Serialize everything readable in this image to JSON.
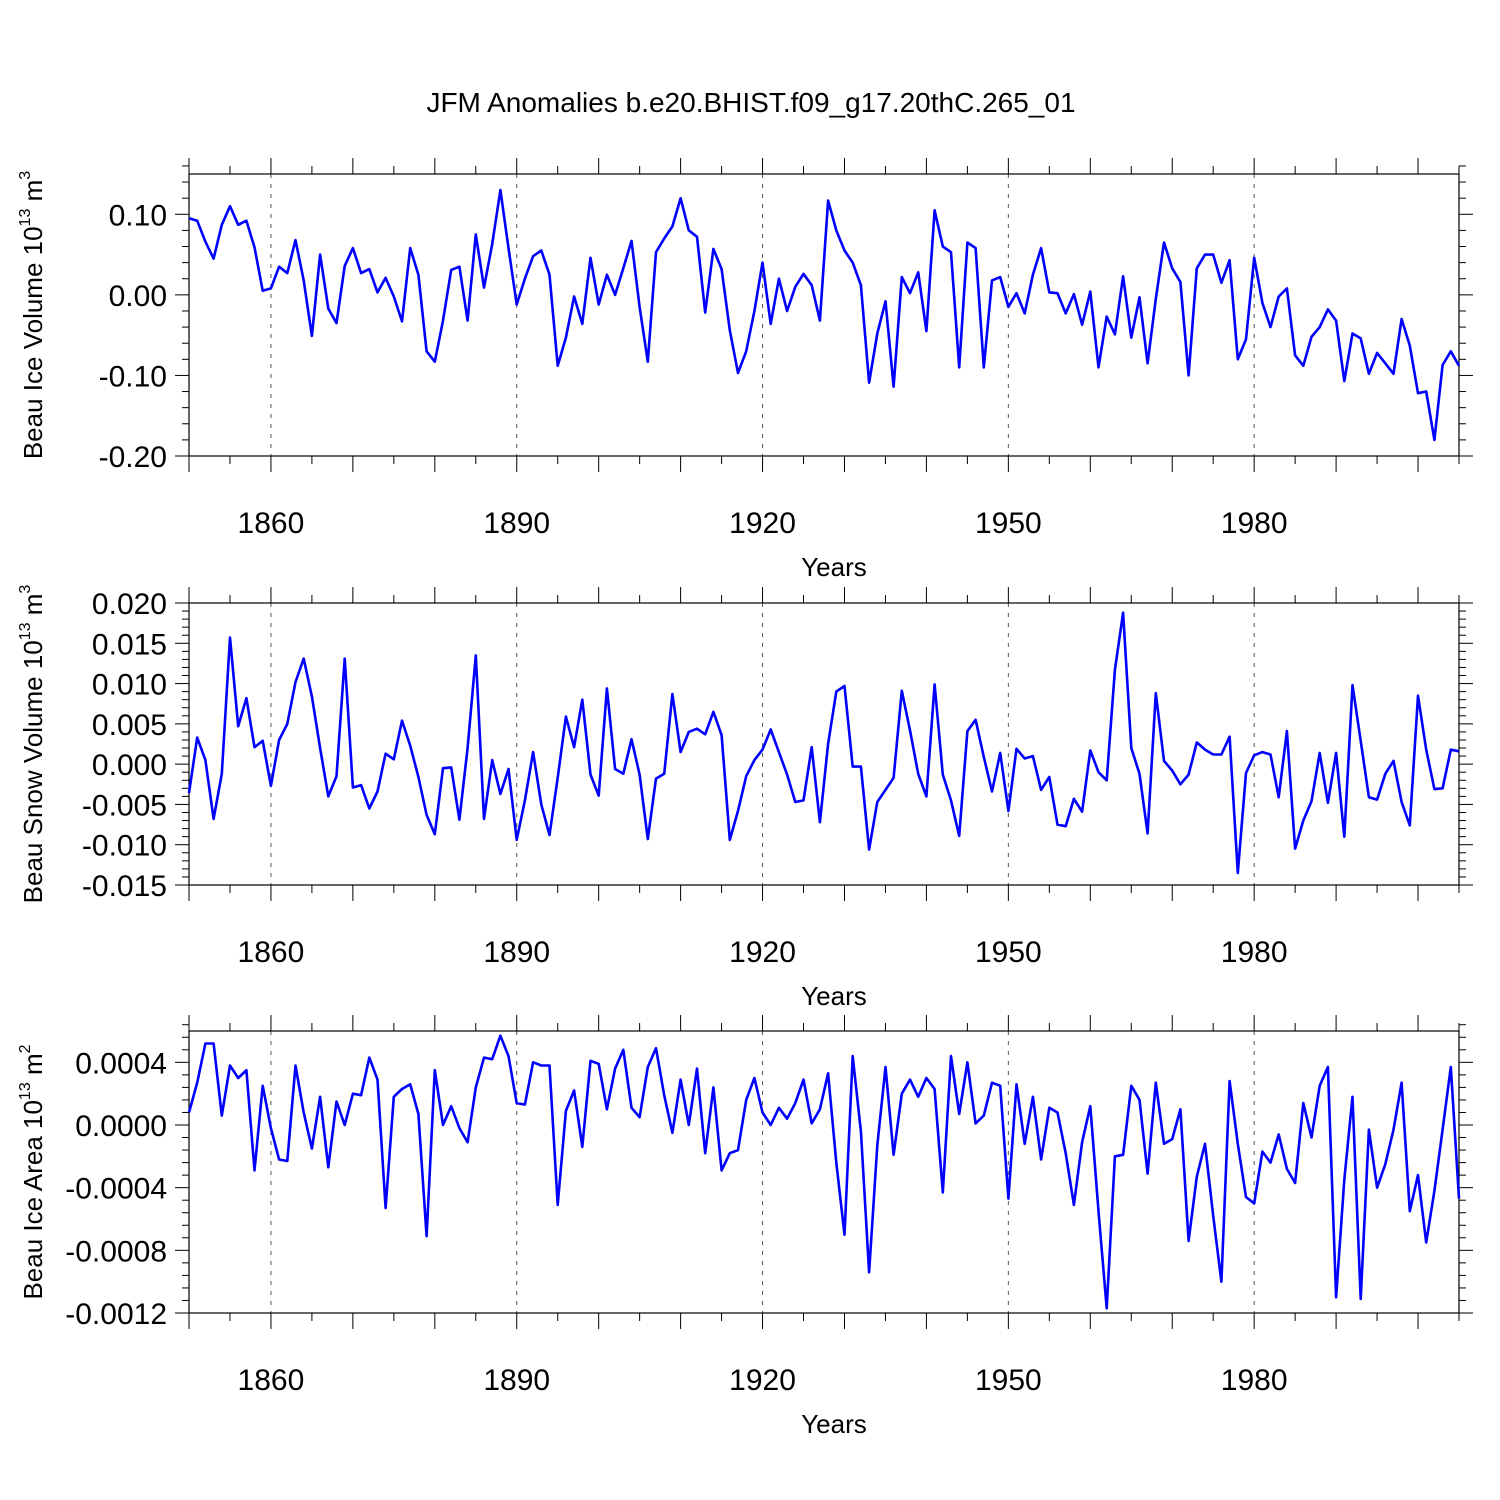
{
  "title": "JFM Anomalies b.e20.BHIST.f09_g17.20thC.265_01",
  "series_color": "#0000ff",
  "chart_data": [
    {
      "type": "line",
      "ylabel": "Beau Ice Volume 10",
      "ylabel_exp": "13",
      "ylabel_unit": " m",
      "ylabel_unit_exp": "3",
      "xlabel": "Years",
      "xlim": [
        1850,
        2005
      ],
      "ylim": [
        -0.2,
        0.15
      ],
      "x_ticks": [
        1860,
        1890,
        1920,
        1950,
        1980
      ],
      "x_tick_labels": [
        "1860",
        "1890",
        "1920",
        "1950",
        "1980"
      ],
      "y_ticks": [
        -0.2,
        -0.1,
        0.0,
        0.1
      ],
      "y_tick_labels": [
        "-0.20",
        "-0.10",
        "0.00",
        "0.10"
      ],
      "x_start": 1850,
      "values": [
        0.095,
        0.092,
        0.066,
        0.045,
        0.087,
        0.11,
        0.087,
        0.092,
        0.059,
        0.005,
        0.008,
        0.035,
        0.027,
        0.068,
        0.018,
        -0.051,
        0.05,
        -0.017,
        -0.035,
        0.036,
        0.058,
        0.027,
        0.032,
        0.003,
        0.021,
        -0.002,
        -0.033,
        0.058,
        0.025,
        -0.07,
        -0.083,
        -0.032,
        0.031,
        0.035,
        -0.032,
        0.075,
        0.009,
        0.063,
        0.13,
        0.058,
        -0.012,
        0.02,
        0.048,
        0.055,
        0.025,
        -0.088,
        -0.053,
        -0.002,
        -0.036,
        0.046,
        -0.012,
        0.025,
        0.0,
        0.033,
        0.067,
        -0.015,
        -0.083,
        0.053,
        0.07,
        0.085,
        0.12,
        0.08,
        0.072,
        -0.022,
        0.057,
        0.032,
        -0.044,
        -0.097,
        -0.07,
        -0.02,
        0.04,
        -0.036,
        0.02,
        -0.02,
        0.01,
        0.026,
        0.012,
        -0.032,
        0.117,
        0.08,
        0.055,
        0.04,
        0.012,
        -0.109,
        -0.048,
        -0.008,
        -0.114,
        0.022,
        0.002,
        0.028,
        -0.045,
        0.105,
        0.06,
        0.053,
        -0.09,
        0.065,
        0.058,
        -0.09,
        0.018,
        0.022,
        -0.015,
        0.002,
        -0.023,
        0.025,
        0.058,
        0.003,
        0.002,
        -0.023,
        0.001,
        -0.037,
        0.004,
        -0.09,
        -0.027,
        -0.049,
        0.023,
        -0.053,
        -0.003,
        -0.085,
        -0.005,
        0.065,
        0.033,
        0.016,
        -0.1,
        0.033,
        0.05,
        0.05,
        0.015,
        0.043,
        -0.08,
        -0.055,
        0.046,
        -0.01,
        -0.04,
        -0.002,
        0.008,
        -0.075,
        -0.088,
        -0.052,
        -0.04,
        -0.018,
        -0.032,
        -0.107,
        -0.048,
        -0.054,
        -0.098,
        -0.072,
        -0.085,
        -0.098,
        -0.03,
        -0.063,
        -0.122,
        -0.12,
        -0.18,
        -0.087,
        -0.07,
        -0.088
      ]
    },
    {
      "type": "line",
      "ylabel": "Beau Snow Volume 10",
      "ylabel_exp": "13",
      "ylabel_unit": " m",
      "ylabel_unit_exp": "3",
      "xlabel": "Years",
      "xlim": [
        1850,
        2005
      ],
      "ylim": [
        -0.015,
        0.02
      ],
      "x_ticks": [
        1860,
        1890,
        1920,
        1950,
        1980
      ],
      "x_tick_labels": [
        "1860",
        "1890",
        "1920",
        "1950",
        "1980"
      ],
      "y_ticks": [
        -0.015,
        -0.01,
        -0.005,
        0.0,
        0.005,
        0.01,
        0.015,
        0.02
      ],
      "y_tick_labels": [
        "-0.015",
        "-0.010",
        "-0.005",
        "0.000",
        "0.005",
        "0.010",
        "0.015",
        "0.020"
      ],
      "x_start": 1850,
      "values": [
        -0.0036,
        0.0033,
        0.0005,
        -0.0068,
        -0.0012,
        0.0157,
        0.0047,
        0.0082,
        0.0021,
        0.0029,
        -0.0027,
        0.003,
        0.005,
        0.0102,
        0.0131,
        0.0084,
        0.002,
        -0.004,
        -0.0015,
        0.0131,
        -0.0029,
        -0.0026,
        -0.0055,
        -0.0034,
        0.0013,
        0.0006,
        0.0054,
        0.0023,
        -0.0016,
        -0.0063,
        -0.0087,
        -0.0005,
        -0.0004,
        -0.0069,
        0.002,
        0.0135,
        -0.0068,
        0.0005,
        -0.0037,
        -0.0006,
        -0.0094,
        -0.0045,
        0.0015,
        -0.005,
        -0.0088,
        -0.0017,
        0.0059,
        0.0021,
        0.008,
        -0.0013,
        -0.0039,
        0.0094,
        -0.0006,
        -0.0012,
        0.0031,
        -0.0013,
        -0.0093,
        -0.0018,
        -0.0012,
        0.0087,
        0.0015,
        0.004,
        0.0044,
        0.0037,
        0.0065,
        0.0036,
        -0.0094,
        -0.0058,
        -0.0015,
        0.0005,
        0.0018,
        0.0043,
        0.0015,
        -0.0013,
        -0.0047,
        -0.0045,
        0.0021,
        -0.0072,
        0.0025,
        0.009,
        0.0097,
        -0.0003,
        -0.0003,
        -0.0106,
        -0.0047,
        -0.0032,
        -0.0017,
        0.0091,
        0.0042,
        -0.0012,
        -0.004,
        0.0099,
        -0.0013,
        -0.0045,
        -0.0089,
        0.0041,
        0.0055,
        0.0009,
        -0.0034,
        0.0014,
        -0.0058,
        0.0019,
        0.0007,
        0.001,
        -0.0032,
        -0.0016,
        -0.0075,
        -0.0077,
        -0.0043,
        -0.0059,
        0.0017,
        -0.001,
        -0.002,
        0.0117,
        0.0188,
        0.002,
        -0.0012,
        -0.0086,
        0.0088,
        0.0004,
        -0.0008,
        -0.0025,
        -0.0013,
        0.0027,
        0.0018,
        0.0012,
        0.0012,
        0.0034,
        -0.0135,
        -0.0011,
        0.0011,
        0.0015,
        0.0012,
        -0.0041,
        0.0041,
        -0.0105,
        -0.007,
        -0.0046,
        0.0014,
        -0.0048,
        0.0014,
        -0.009,
        0.0098,
        0.0029,
        -0.0041,
        -0.0044,
        -0.0012,
        0.0004,
        -0.0047,
        -0.0076,
        0.0085,
        0.0018,
        -0.0031,
        -0.003,
        0.0018,
        0.0016
      ]
    },
    {
      "type": "line",
      "ylabel": "Beau Ice Area 10",
      "ylabel_exp": "13",
      "ylabel_unit": " m",
      "ylabel_unit_exp": "2",
      "xlabel": "Years",
      "xlim": [
        1850,
        2005
      ],
      "ylim": [
        -0.0012,
        0.0006
      ],
      "x_ticks": [
        1860,
        1890,
        1920,
        1950,
        1980
      ],
      "x_tick_labels": [
        "1860",
        "1890",
        "1920",
        "1950",
        "1980"
      ],
      "y_ticks": [
        -0.0012,
        -0.0008,
        -0.0004,
        0.0,
        0.0004
      ],
      "y_tick_labels": [
        "-0.0012",
        "-0.0008",
        "-0.0004",
        "0.0000",
        "0.0004"
      ],
      "x_start": 1850,
      "values": [
        8e-05,
        0.00027,
        0.00052,
        0.00052,
        6e-05,
        0.00038,
        0.0003,
        0.00035,
        -0.00029,
        0.00025,
        -2e-05,
        -0.00022,
        -0.00023,
        0.00038,
        8e-05,
        -0.00015,
        0.00018,
        -0.00027,
        0.00015,
        0.0,
        0.0002,
        0.00019,
        0.00043,
        0.00029,
        -0.00053,
        0.00018,
        0.00023,
        0.00026,
        7e-05,
        -0.00071,
        0.00035,
        0.0,
        0.00012,
        -2e-05,
        -0.00011,
        0.00024,
        0.00043,
        0.00042,
        0.00057,
        0.00044,
        0.00014,
        0.00013,
        0.0004,
        0.00038,
        0.00038,
        -0.00051,
        9e-05,
        0.00022,
        -0.00014,
        0.00041,
        0.00039,
        0.0001,
        0.00036,
        0.00048,
        0.00011,
        5e-05,
        0.00037,
        0.00049,
        0.00019,
        -5e-05,
        0.00029,
        0.0,
        0.00036,
        -0.00018,
        0.00024,
        -0.00029,
        -0.00018,
        -0.00016,
        0.00016,
        0.0003,
        8e-05,
        0.0,
        0.00011,
        4e-05,
        0.00014,
        0.00029,
        1e-05,
        0.0001,
        0.00033,
        -0.00024,
        -0.0007,
        0.00044,
        -4e-05,
        -0.00094,
        -0.00013,
        0.00037,
        -0.00019,
        0.0002,
        0.00029,
        0.00018,
        0.0003,
        0.00023,
        -0.00043,
        0.00044,
        7e-05,
        0.0004,
        1e-05,
        6e-05,
        0.00027,
        0.00025,
        -0.00047,
        0.00026,
        -0.00012,
        0.00018,
        -0.00022,
        0.00011,
        8e-05,
        -0.00018,
        -0.00051,
        -0.00011,
        0.00012,
        -0.00055,
        -0.00117,
        -0.0002,
        -0.00019,
        0.00025,
        0.00016,
        -0.00031,
        0.00027,
        -0.00012,
        -9e-05,
        0.0001,
        -0.00074,
        -0.00033,
        -0.00012,
        -0.00058,
        -0.001,
        0.00028,
        -0.00012,
        -0.00046,
        -0.0005,
        -0.00017,
        -0.00024,
        -6e-05,
        -0.00028,
        -0.00037,
        0.00014,
        -8e-05,
        0.00025,
        0.00037,
        -0.0011,
        -0.00035,
        0.00018,
        -0.00111,
        -3e-05,
        -0.0004,
        -0.00025,
        -3e-05,
        0.00027,
        -0.00055,
        -0.00032,
        -0.00075,
        -0.00042,
        -3e-05,
        0.00037,
        -0.00047
      ]
    }
  ]
}
